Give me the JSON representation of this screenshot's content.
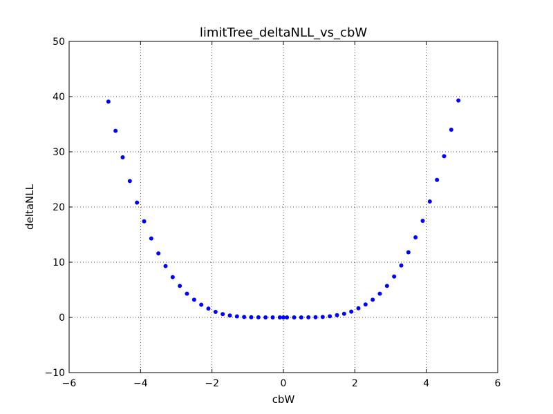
{
  "chart_data": {
    "type": "scatter",
    "title": "limitTree_deltaNLL_vs_cbW",
    "xlabel": "cbW",
    "ylabel": "deltaNLL",
    "xlim": [
      -6,
      6
    ],
    "ylim": [
      -10,
      50
    ],
    "xticks": [
      -6,
      -4,
      -2,
      0,
      2,
      4,
      6
    ],
    "xtick_labels": [
      "−6",
      "−4",
      "−2",
      "0",
      "2",
      "4",
      "6"
    ],
    "yticks": [
      -10,
      0,
      10,
      20,
      30,
      40,
      50
    ],
    "ytick_labels": [
      "−10",
      "0",
      "10",
      "20",
      "30",
      "40",
      "50"
    ],
    "grid": true,
    "grid_style": "dotted",
    "marker_color": "#0000ff",
    "series": [
      {
        "x": [
          -4.9,
          -4.7,
          -4.5,
          -4.3,
          -4.1,
          -3.9,
          -3.7,
          -3.5,
          -3.3,
          -3.1,
          -2.9,
          -2.7,
          -2.5,
          -2.3,
          -2.1,
          -1.9,
          -1.7,
          -1.5,
          -1.3,
          -1.1,
          -0.9,
          -0.7,
          -0.5,
          -0.3,
          -0.1,
          0.0,
          0.1,
          0.3,
          0.5,
          0.7,
          0.9,
          1.1,
          1.3,
          1.5,
          1.7,
          1.9,
          2.1,
          2.3,
          2.5,
          2.7,
          2.9,
          3.1,
          3.3,
          3.5,
          3.7,
          3.9,
          4.1,
          4.3,
          4.5,
          4.7,
          4.9
        ],
        "y": [
          39.1,
          33.8,
          29.0,
          24.7,
          20.8,
          17.4,
          14.3,
          11.6,
          9.3,
          7.3,
          5.7,
          4.3,
          3.2,
          2.3,
          1.6,
          1.0,
          0.6,
          0.35,
          0.18,
          0.08,
          0.03,
          0.01,
          0.0,
          0.0,
          0.0,
          0.0,
          0.0,
          0.0,
          0.0,
          0.01,
          0.03,
          0.08,
          0.2,
          0.4,
          0.65,
          1.05,
          1.65,
          2.35,
          3.2,
          4.3,
          5.7,
          7.4,
          9.4,
          11.8,
          14.5,
          17.5,
          21.0,
          24.9,
          29.2,
          34.0,
          39.3
        ]
      }
    ]
  }
}
